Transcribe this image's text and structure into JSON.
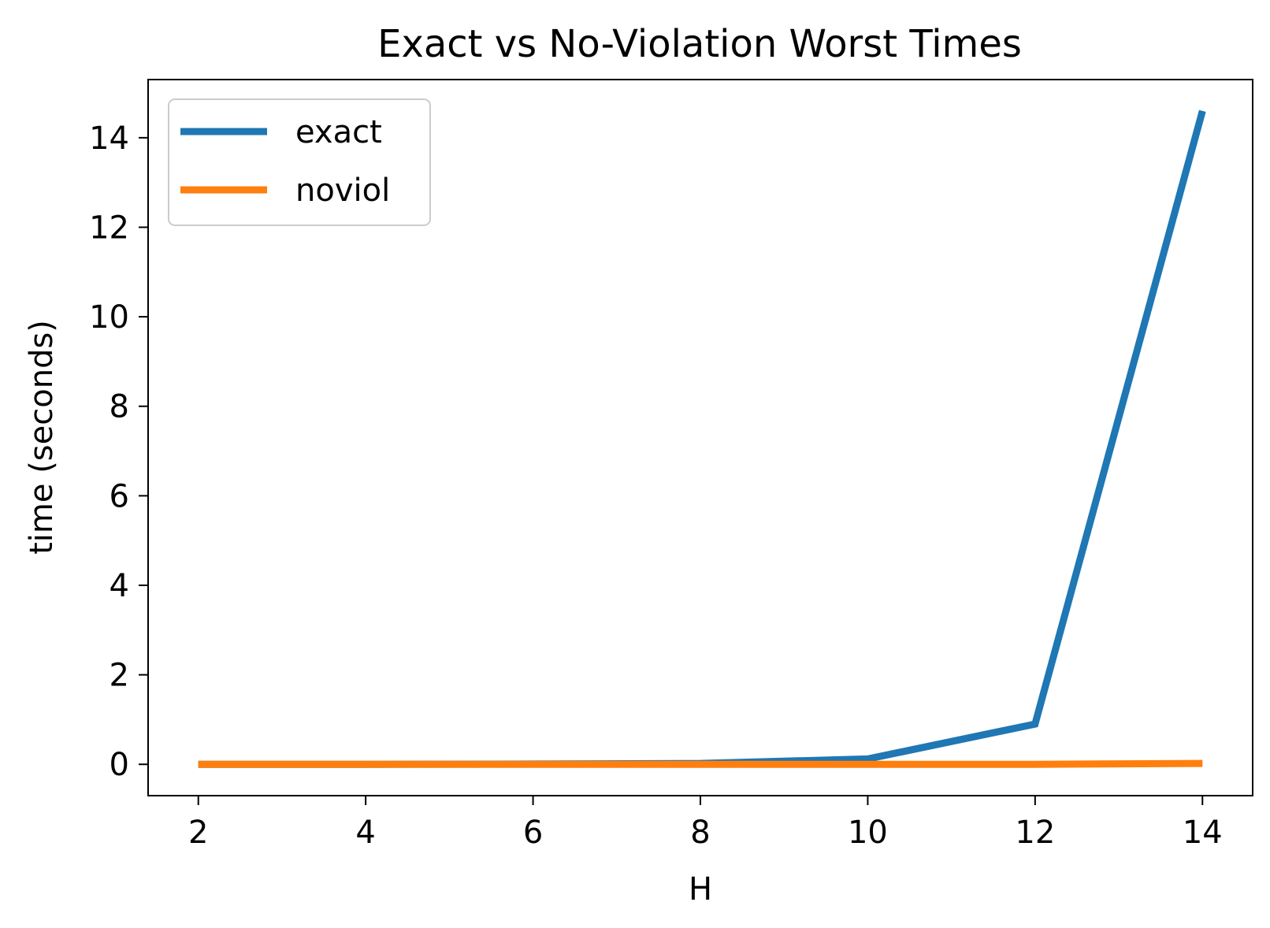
{
  "chart_data": {
    "type": "line",
    "title": "Exact vs No-Violation Worst Times",
    "xlabel": "H",
    "ylabel": "time (seconds)",
    "xlim": [
      1.4,
      14.6
    ],
    "ylim": [
      -0.7,
      15.3
    ],
    "xticks": [
      2,
      4,
      6,
      8,
      10,
      12,
      14
    ],
    "yticks": [
      0,
      2,
      4,
      6,
      8,
      10,
      12,
      14
    ],
    "x": [
      2,
      4,
      6,
      8,
      10,
      12,
      14
    ],
    "grid": false,
    "legend_position": "upper-left",
    "series": [
      {
        "name": "exact",
        "color": "#1f77b4",
        "values": [
          0.0,
          0.0,
          0.005,
          0.02,
          0.12,
          0.9,
          14.6
        ]
      },
      {
        "name": "noviol",
        "color": "#ff7f0e",
        "values": [
          0.0,
          0.0,
          0.0,
          0.0,
          0.0,
          0.0,
          0.02
        ]
      }
    ]
  }
}
